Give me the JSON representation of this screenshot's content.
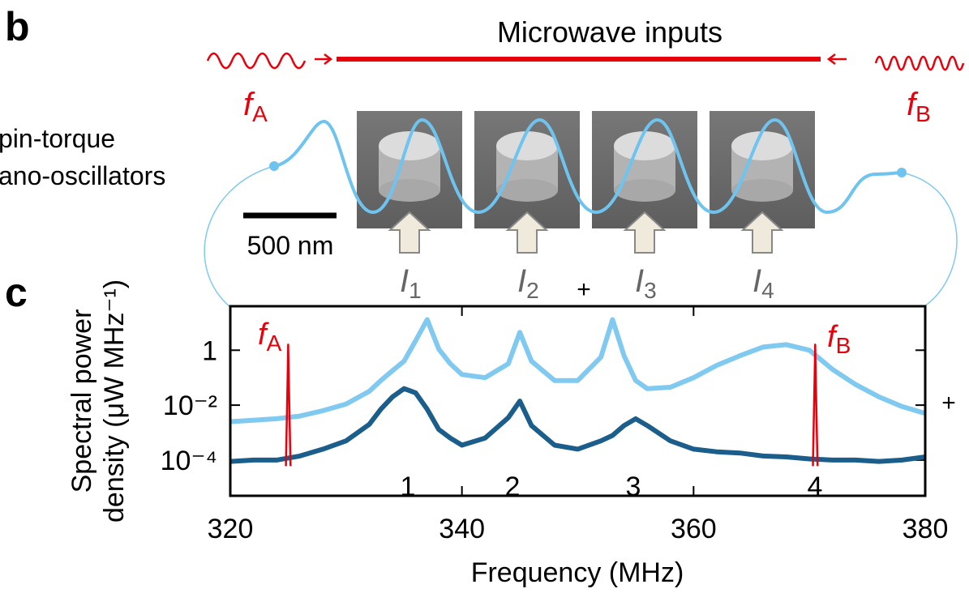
{
  "panel_b": {
    "label": "b",
    "title": "Microwave inputs",
    "source_a": {
      "symbol": "f",
      "subscript": "A"
    },
    "source_b": {
      "symbol": "f",
      "subscript": "B"
    },
    "device_label": [
      "pin-torque",
      "ano-oscillators"
    ],
    "scale_bar": "500 nm",
    "currents": [
      {
        "symbol": "I",
        "subscript": "1"
      },
      {
        "symbol": "I",
        "subscript": "2"
      },
      {
        "symbol": "I",
        "subscript": "3"
      },
      {
        "symbol": "I",
        "subscript": "4"
      }
    ],
    "plus": [
      "+",
      "+"
    ]
  },
  "panel_label_c": "c",
  "chart_data": {
    "type": "line",
    "xlabel": "Frequency (MHz)",
    "ylabel": [
      "Spectral power",
      "density (μW MHz⁻¹)"
    ],
    "xlim": [
      320,
      380
    ],
    "ylim": [
      5e-06,
      40
    ],
    "log_y": true,
    "xticks": [
      320,
      340,
      360,
      380
    ],
    "yticks": [
      1,
      {
        "value": 0.01,
        "label": "10⁻²"
      },
      {
        "value": 0.0001,
        "label": "10⁻⁴"
      }
    ],
    "series": [
      {
        "color": "#80c9f0",
        "x": [
          320,
          322,
          324,
          326,
          328,
          330,
          332,
          333,
          334,
          335,
          336,
          337,
          338,
          339,
          340,
          342,
          344,
          345,
          346,
          348,
          350,
          352,
          353,
          354,
          355,
          356,
          358,
          360,
          362,
          364,
          366,
          368,
          370,
          372,
          374,
          376,
          378,
          380
        ],
        "values": [
          0.0025,
          0.0028,
          0.0032,
          0.004,
          0.0063,
          0.011,
          0.032,
          0.079,
          0.18,
          0.4,
          2.2,
          13,
          1.1,
          0.32,
          0.13,
          0.1,
          0.32,
          4.5,
          0.4,
          0.079,
          0.079,
          0.56,
          13,
          0.63,
          0.079,
          0.04,
          0.045,
          0.1,
          0.28,
          0.63,
          1.3,
          1.6,
          1,
          0.2,
          0.056,
          0.02,
          0.0089,
          0.005
        ]
      },
      {
        "color": "#1b5e8c",
        "x": [
          320,
          322,
          324,
          326,
          328,
          330,
          332,
          333,
          334,
          335,
          336,
          337,
          338,
          339,
          340,
          342,
          344,
          345,
          346,
          348,
          350,
          352,
          353,
          354,
          355,
          356,
          358,
          360,
          362,
          364,
          366,
          368,
          370,
          372,
          374,
          376,
          378,
          380
        ],
        "values": [
          8.9e-05,
          0.0001,
          0.0001,
          0.00014,
          0.00025,
          0.0005,
          0.002,
          0.0071,
          0.02,
          0.04,
          0.028,
          0.0071,
          0.0013,
          0.00063,
          0.00035,
          0.00063,
          0.0035,
          0.014,
          0.0018,
          0.00035,
          0.00025,
          0.0005,
          0.00079,
          0.0018,
          0.0032,
          0.0018,
          0.0005,
          0.00025,
          0.0002,
          0.00018,
          0.00014,
          0.00013,
          0.00011,
          0.0001,
          0.0001,
          8.9e-05,
          0.0001,
          0.00013
        ]
      },
      {
        "color": "#e8000b",
        "x": [
          324.8,
          324.95,
          325.0,
          325.05,
          325.2
        ],
        "values": [
          6e-05,
          0.1,
          1.6,
          0.1,
          6e-05
        ]
      },
      {
        "color": "#e8000b",
        "x": [
          370.3,
          370.45,
          370.5,
          370.55,
          370.7
        ],
        "values": [
          6e-05,
          0.1,
          1.6,
          0.1,
          6e-05
        ]
      }
    ],
    "peak_labels": [
      "1",
      "2",
      "3",
      "4"
    ],
    "source_labels": [
      {
        "symbol": "f",
        "subscript": "A"
      },
      {
        "symbol": "f",
        "subscript": "B"
      }
    ]
  }
}
